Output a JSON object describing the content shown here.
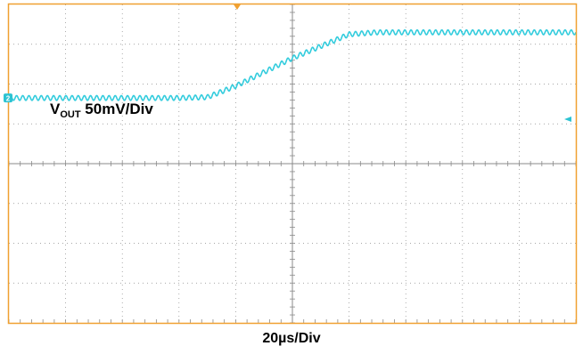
{
  "chart_data": {
    "type": "line",
    "title": "",
    "channel_label": {
      "main": "V",
      "sub": "OUT",
      "scale": " 50mV/Div"
    },
    "xlabel": "20µs/Div",
    "ylabel": "",
    "grid": true,
    "divisions": {
      "x": 10,
      "y": 8
    },
    "xlim": [
      0,
      10
    ],
    "ylim": [
      0,
      8
    ],
    "channel_marker": "2",
    "colors": {
      "trace": "#33ccdd",
      "frame": "#f0a030",
      "grid": "#8a8a8a",
      "marker": "#2cc3d2"
    },
    "series": [
      {
        "x": [
          0,
          1,
          2,
          3,
          3.5,
          4,
          4.5,
          5,
          5.5,
          6,
          6.5,
          7,
          8,
          9,
          10
        ],
        "y": [
          5.65,
          5.65,
          5.65,
          5.65,
          5.67,
          5.95,
          6.3,
          6.65,
          6.95,
          7.25,
          7.3,
          7.3,
          7.3,
          7.3,
          7.3
        ],
        "ripple": 0.06
      }
    ]
  }
}
